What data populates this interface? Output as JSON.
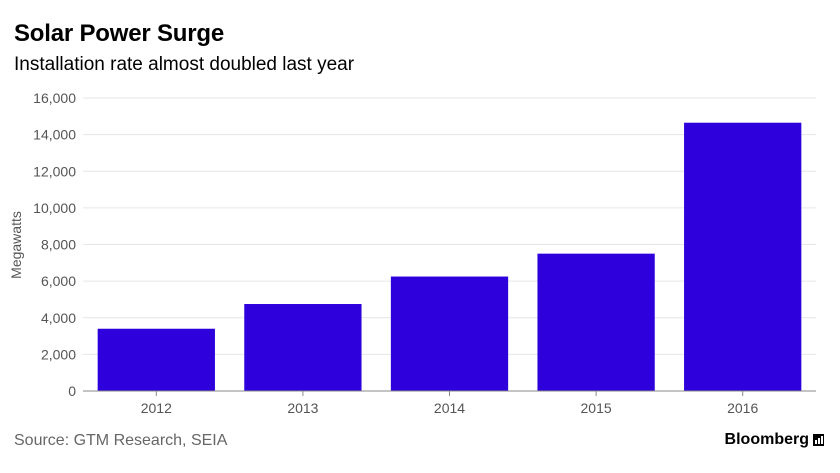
{
  "header": {
    "title": "Solar Power Surge",
    "subtitle": "Installation rate almost doubled last year"
  },
  "footer": {
    "source": "Source: GTM Research, SEIA",
    "brand": "Bloomberg"
  },
  "colors": {
    "bar": "#2d00dc",
    "grid": "#e6e6e6",
    "axis": "#888888",
    "tick_text": "#555555"
  },
  "chart_data": {
    "type": "bar",
    "categories": [
      "2012",
      "2013",
      "2014",
      "2015",
      "2016"
    ],
    "values": [
      3400,
      4750,
      6250,
      7500,
      14650
    ],
    "title": "Solar Power Surge",
    "subtitle": "Installation rate almost doubled last year",
    "xlabel": "",
    "ylabel": "Megawatts",
    "ylim": [
      0,
      16000
    ],
    "yticks": [
      0,
      2000,
      4000,
      6000,
      8000,
      10000,
      12000,
      14000,
      16000
    ],
    "ytick_labels": [
      "0",
      "2,000",
      "4,000",
      "6,000",
      "8,000",
      "10,000",
      "12,000",
      "14,000",
      "16,000"
    ],
    "grid": true,
    "legend": "none"
  }
}
